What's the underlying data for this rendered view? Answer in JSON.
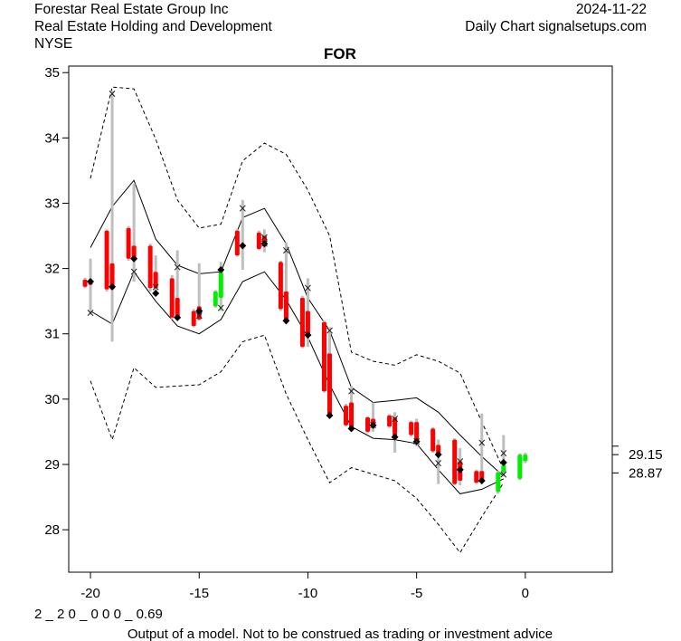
{
  "header": {
    "company": "Forestar Real Estate Group Inc",
    "industry": "Real Estate Holding and Development",
    "exchange": "NYSE",
    "date": "2024-11-22",
    "source": "Daily Chart signalsetups.com"
  },
  "footer": {
    "model_code": "2 _ 2 0 _ 0 0 0 _ 0.69",
    "disclaimer": "Output of a model. Not to be construed as trading or investment advice"
  },
  "colors": {
    "down": "#ff0000",
    "up": "#00ee00",
    "range": "#bebebe",
    "line": "#000000"
  },
  "chart_data": {
    "type": "candlestick",
    "title": "FOR",
    "xlim": [
      -21,
      4
    ],
    "ylim": [
      27.35,
      35.1
    ],
    "x_ticks": [
      -20,
      -15,
      -10,
      -5,
      0
    ],
    "x_tick_labels": [
      "-20",
      "-15",
      "-10",
      "-5",
      "0"
    ],
    "y_ticks": [
      28,
      29,
      30,
      31,
      32,
      33,
      34,
      35
    ],
    "y_tick_labels": [
      "28",
      "29",
      "30",
      "31",
      "32",
      "33",
      "34",
      "35"
    ],
    "right_labels": [
      {
        "value": 29.15,
        "label": "29.15"
      },
      {
        "value": 28.87,
        "label": "28.87"
      }
    ],
    "bars": [
      {
        "x": -20.25,
        "open": 31.83,
        "close": 31.72,
        "high": 31.86,
        "low": 31.7,
        "dir": "down"
      },
      {
        "x": -20.0,
        "open": 31.78,
        "close": 31.78,
        "high": 32.15,
        "low": 31.3,
        "dir": "down",
        "cross": 31.32,
        "diamond": 31.8
      },
      {
        "x": -19.25,
        "open": 32.58,
        "close": 31.68,
        "high": 32.6,
        "low": 31.65,
        "dir": "down"
      },
      {
        "x": -19.0,
        "open": 32.08,
        "close": 31.68,
        "high": 34.72,
        "low": 30.88,
        "dir": "down",
        "cross": 34.68,
        "diamond": 31.72
      },
      {
        "x": -18.25,
        "open": 32.62,
        "close": 32.15,
        "high": 32.65,
        "low": 32.12,
        "dir": "down"
      },
      {
        "x": -18.0,
        "open": 32.35,
        "close": 32.15,
        "high": 33.3,
        "low": 31.8,
        "dir": "down",
        "cross": 31.95,
        "diamond": 32.15
      },
      {
        "x": -17.25,
        "open": 32.35,
        "close": 31.7,
        "high": 32.38,
        "low": 31.65,
        "dir": "down"
      },
      {
        "x": -17.0,
        "open": 31.95,
        "close": 31.7,
        "high": 32.2,
        "low": 31.58,
        "dir": "down",
        "cross": 31.72,
        "diamond": 31.62
      },
      {
        "x": -16.25,
        "open": 31.85,
        "close": 31.25,
        "high": 31.9,
        "low": 31.22,
        "dir": "down"
      },
      {
        "x": -16.0,
        "open": 31.55,
        "close": 31.25,
        "high": 32.28,
        "low": 31.2,
        "dir": "down",
        "cross": 32.02,
        "diamond": 31.25
      },
      {
        "x": -15.25,
        "open": 31.35,
        "close": 31.12,
        "high": 31.38,
        "low": 31.1,
        "dir": "down"
      },
      {
        "x": -15.0,
        "open": 31.42,
        "close": 31.22,
        "high": 32.08,
        "low": 31.2,
        "dir": "down",
        "cross": 31.28,
        "diamond": 31.35
      },
      {
        "x": -14.25,
        "open": 31.42,
        "close": 31.65,
        "high": 31.67,
        "low": 31.4,
        "dir": "up"
      },
      {
        "x": -14.0,
        "open": 31.55,
        "close": 31.95,
        "high": 32.1,
        "low": 31.35,
        "dir": "up",
        "cross": 31.4,
        "diamond": 31.98
      },
      {
        "x": -13.25,
        "open": 32.58,
        "close": 32.2,
        "high": 32.6,
        "low": 32.18,
        "dir": "down"
      },
      {
        "x": -13.0,
        "open": 32.35,
        "close": 32.35,
        "high": 33.05,
        "low": 31.98,
        "dir": "down",
        "cross": 32.92,
        "diamond": 32.35
      },
      {
        "x": -12.25,
        "open": 32.55,
        "close": 32.3,
        "high": 32.58,
        "low": 32.28,
        "dir": "down"
      },
      {
        "x": -12.0,
        "open": 32.5,
        "close": 32.38,
        "high": 32.6,
        "low": 32.25,
        "dir": "down",
        "cross": 32.48,
        "diamond": 32.38
      },
      {
        "x": -11.25,
        "open": 32.1,
        "close": 31.38,
        "high": 32.12,
        "low": 31.35,
        "dir": "down"
      },
      {
        "x": -11.0,
        "open": 31.65,
        "close": 31.2,
        "high": 32.4,
        "low": 31.15,
        "dir": "down",
        "cross": 32.28,
        "diamond": 31.2
      },
      {
        "x": -10.25,
        "open": 31.55,
        "close": 30.8,
        "high": 31.58,
        "low": 30.78,
        "dir": "down"
      },
      {
        "x": -10.0,
        "open": 31.35,
        "close": 30.98,
        "high": 31.85,
        "low": 30.8,
        "dir": "down",
        "cross": 31.7,
        "diamond": 30.98
      },
      {
        "x": -9.25,
        "open": 31.18,
        "close": 30.12,
        "high": 31.2,
        "low": 30.1,
        "dir": "down"
      },
      {
        "x": -9.0,
        "open": 30.7,
        "close": 29.75,
        "high": 31.1,
        "low": 29.7,
        "dir": "down",
        "cross": 31.05,
        "diamond": 29.75
      },
      {
        "x": -8.25,
        "open": 29.9,
        "close": 29.6,
        "high": 29.93,
        "low": 29.58,
        "dir": "down"
      },
      {
        "x": -8.0,
        "open": 29.95,
        "close": 29.55,
        "high": 30.2,
        "low": 29.52,
        "dir": "down",
        "cross": 30.12,
        "diamond": 29.55
      },
      {
        "x": -7.25,
        "open": 29.72,
        "close": 29.5,
        "high": 29.74,
        "low": 29.48,
        "dir": "down"
      },
      {
        "x": -7.0,
        "open": 29.7,
        "close": 29.6,
        "high": 29.95,
        "low": 29.5,
        "dir": "down",
        "cross": 29.6,
        "diamond": 29.6
      },
      {
        "x": -6.25,
        "open": 29.75,
        "close": 29.58,
        "high": 29.77,
        "low": 29.56,
        "dir": "down"
      },
      {
        "x": -6.0,
        "open": 29.72,
        "close": 29.42,
        "high": 29.8,
        "low": 29.18,
        "dir": "down",
        "cross": 29.7,
        "diamond": 29.42
      },
      {
        "x": -5.25,
        "open": 29.65,
        "close": 29.45,
        "high": 29.67,
        "low": 29.43,
        "dir": "down"
      },
      {
        "x": -5.0,
        "open": 29.65,
        "close": 29.35,
        "high": 29.7,
        "low": 29.28,
        "dir": "down",
        "cross": 29.35,
        "diamond": 29.35
      },
      {
        "x": -4.25,
        "open": 29.55,
        "close": 29.2,
        "high": 29.57,
        "low": 29.18,
        "dir": "down"
      },
      {
        "x": -4.0,
        "open": 29.3,
        "close": 29.15,
        "high": 29.38,
        "low": 28.7,
        "dir": "down",
        "cross": 29.02,
        "diamond": 29.15
      },
      {
        "x": -3.25,
        "open": 29.38,
        "close": 28.7,
        "high": 29.4,
        "low": 28.68,
        "dir": "down"
      },
      {
        "x": -3.0,
        "open": 29.05,
        "close": 28.75,
        "high": 29.25,
        "low": 28.68,
        "dir": "down",
        "cross": 29.05,
        "diamond": 28.92
      },
      {
        "x": -2.25,
        "open": 28.9,
        "close": 28.72,
        "high": 28.92,
        "low": 28.7,
        "dir": "down"
      },
      {
        "x": -2.0,
        "open": 28.9,
        "close": 28.75,
        "high": 29.78,
        "low": 28.7,
        "dir": "down",
        "cross": 29.33,
        "diamond": 28.75
      },
      {
        "x": -1.25,
        "open": 28.58,
        "close": 28.88,
        "high": 28.9,
        "low": 28.55,
        "dir": "up"
      },
      {
        "x": -1.0,
        "open": 28.88,
        "close": 29.0,
        "high": 29.45,
        "low": 28.82,
        "dir": "up",
        "cross": 29.17,
        "diamond": 29.03
      },
      {
        "x": -0.25,
        "open": 28.78,
        "close": 29.15,
        "high": 29.17,
        "low": 28.76,
        "dir": "up"
      },
      {
        "x": 0.0,
        "open": 29.05,
        "close": 29.15,
        "high": 29.18,
        "low": 29.02,
        "dir": "up"
      }
    ],
    "extra_crosses": [
      {
        "x": -12.0,
        "y": 32.38
      },
      {
        "x": -1.0,
        "y": 28.85
      }
    ],
    "bands": {
      "x": [
        -20,
        -19,
        -18,
        -17,
        -16,
        -15,
        -14,
        -13,
        -12,
        -11,
        -10,
        -9,
        -8,
        -7,
        -6,
        -5,
        -4,
        -3,
        -2,
        -1
      ],
      "upper_outer": [
        33.38,
        34.78,
        34.75,
        33.98,
        33.05,
        32.62,
        32.68,
        33.65,
        33.92,
        33.75,
        33.2,
        32.5,
        30.72,
        30.58,
        30.52,
        30.68,
        30.58,
        30.4,
        29.65,
        28.92
      ],
      "upper_inner": [
        32.32,
        32.95,
        33.35,
        32.45,
        32.05,
        31.92,
        31.95,
        32.78,
        32.92,
        32.38,
        31.55,
        31.05,
        30.18,
        29.95,
        29.98,
        30.02,
        29.8,
        29.45,
        29.12,
        28.82
      ],
      "lower_inner": [
        31.35,
        31.15,
        31.95,
        31.5,
        31.12,
        31.0,
        31.22,
        31.8,
        31.95,
        31.52,
        30.95,
        30.22,
        29.58,
        29.4,
        29.38,
        29.32,
        28.92,
        28.55,
        28.62,
        28.78
      ],
      "lower_outer": [
        30.28,
        29.38,
        30.48,
        30.18,
        30.2,
        30.22,
        30.42,
        30.88,
        30.98,
        30.08,
        29.38,
        28.72,
        28.95,
        28.85,
        28.75,
        28.48,
        28.08,
        27.65,
        28.2,
        28.72
      ]
    }
  }
}
